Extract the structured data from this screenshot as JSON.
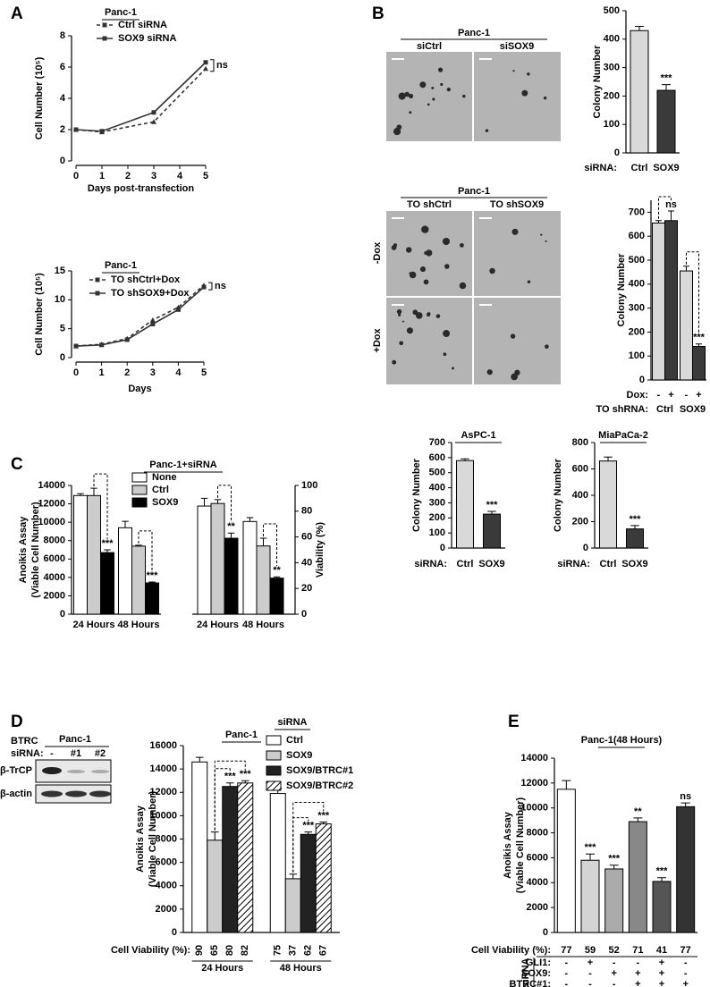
{
  "panel_labels": [
    "A",
    "B",
    "C",
    "D",
    "E"
  ],
  "micrographs": [
    {
      "title": "Panc-1",
      "columns": [
        "siCtrl",
        "siSOX9"
      ]
    },
    {
      "title": "Panc-1",
      "columns": [
        "TO shCtrl",
        "TO shSOX9"
      ],
      "rows": [
        "-Dox",
        "+Dox"
      ]
    }
  ],
  "blot": {
    "label": [
      "BTRC",
      "siRNA:"
    ],
    "title": "Panc-1",
    "lanes": [
      "-",
      "#1",
      "#2"
    ],
    "bands": [
      "β-TrCP",
      "β-actin"
    ]
  },
  "chart_data": [
    {
      "type": "line",
      "title": "Panc-1",
      "x": [
        0,
        1,
        3,
        5
      ],
      "series": [
        {
          "name": "Ctrl siRNA",
          "color": "#333333",
          "dashed": true,
          "marker": "triangle",
          "values": [
            2,
            1.85,
            2.5,
            5.9
          ]
        },
        {
          "name": "SOX9 siRNA",
          "color": "#333333",
          "dashed": false,
          "marker": "square",
          "values": [
            2,
            1.9,
            3.1,
            6.3
          ]
        }
      ],
      "xlim": [
        0,
        5
      ],
      "xticks": [
        0,
        1,
        2,
        3,
        4,
        5
      ],
      "ylim": [
        0,
        8
      ],
      "yticks": [
        0,
        2,
        4,
        6,
        8
      ],
      "xlabel": "Days post-transfection",
      "ylabel": [
        "Cell Number (10⁵)"
      ],
      "annotation": "ns"
    },
    {
      "type": "line",
      "title": "Panc-1",
      "x": [
        0,
        1,
        2,
        3,
        4,
        5
      ],
      "series": [
        {
          "name": "TO shCtrl+Dox",
          "color": "#333333",
          "dashed": true,
          "marker": "triangle",
          "values": [
            2,
            2.3,
            3.3,
            6.5,
            8.7,
            12.5
          ]
        },
        {
          "name": "TO shSOX9+Dox",
          "color": "#333333",
          "dashed": false,
          "marker": "square",
          "values": [
            2,
            2.2,
            3.1,
            5.8,
            8.3,
            12.2
          ]
        }
      ],
      "xlim": [
        0,
        5
      ],
      "xticks": [
        0,
        1,
        2,
        3,
        4,
        5
      ],
      "ylim": [
        0,
        15
      ],
      "yticks": [
        0,
        5,
        10,
        15
      ],
      "xlabel": "Days",
      "ylabel": [
        "Cell Number (10⁵)"
      ],
      "annotation": "ns"
    },
    {
      "type": "bar",
      "categories": [
        "Ctrl",
        "SOX9"
      ],
      "values": [
        430,
        220
      ],
      "errors": [
        15,
        20
      ],
      "colors": [
        "#d9d9d9",
        "#3a3a3a"
      ],
      "annotations": [
        null,
        "***"
      ],
      "ylim": [
        0,
        500
      ],
      "yticks": [
        0,
        100,
        200,
        300,
        400,
        500
      ],
      "ylabel": [
        "Colony Number"
      ],
      "category_label": "siRNA:"
    },
    {
      "type": "grouped_bar",
      "categories": [
        "Ctrl",
        "SOX9"
      ],
      "series": [
        {
          "name": "-",
          "color": "#d9d9d9",
          "values": [
            655,
            455
          ],
          "errors": [
            10,
            20
          ]
        },
        {
          "name": "+",
          "color": "#3a3a3a",
          "values": [
            665,
            140
          ],
          "errors": [
            40,
            10
          ],
          "annotations": [
            "ns",
            "***"
          ]
        }
      ],
      "ylim": [
        0,
        750
      ],
      "yticks": [
        0,
        100,
        200,
        300,
        400,
        500,
        600,
        700
      ],
      "ylabel": [
        "Colony Number"
      ],
      "series_label": "Dox:",
      "category_label": "TO shRNA:",
      "legend": false
    },
    {
      "type": "bar",
      "title": "AsPC-1",
      "categories": [
        "Ctrl",
        "SOX9"
      ],
      "values": [
        580,
        225
      ],
      "errors": [
        12,
        18
      ],
      "colors": [
        "#d9d9d9",
        "#3a3a3a"
      ],
      "annotations": [
        null,
        "***"
      ],
      "ylim": [
        0,
        700
      ],
      "yticks": [
        0,
        100,
        200,
        300,
        400,
        500,
        600,
        700
      ],
      "ylabel": [
        "Colony Number"
      ],
      "category_label": "siRNA:"
    },
    {
      "type": "bar",
      "title": "MiaPaCa-2",
      "categories": [
        "Ctrl",
        "SOX9"
      ],
      "values": [
        660,
        145
      ],
      "errors": [
        30,
        25
      ],
      "colors": [
        "#d9d9d9",
        "#3a3a3a"
      ],
      "annotations": [
        null,
        "***"
      ],
      "ylim": [
        0,
        800
      ],
      "yticks": [
        0,
        200,
        400,
        600,
        800
      ],
      "ylabel": [
        "Colony Number"
      ],
      "category_label": "siRNA:"
    },
    {
      "type": "grouped_bar",
      "title": "Panc-1+siRNA",
      "categories": [
        "24 Hours",
        "48 Hours"
      ],
      "series": [
        {
          "name": "None",
          "color": "#ffffff",
          "values": [
            12900,
            9400
          ],
          "errors": [
            200,
            700
          ]
        },
        {
          "name": "Ctrl",
          "color": "#cccccc",
          "values": [
            12900,
            7400
          ],
          "errors": [
            800,
            100
          ]
        },
        {
          "name": "SOX9",
          "color": "#000000",
          "values": [
            6700,
            3400
          ],
          "errors": [
            300,
            100
          ],
          "annotations": [
            "***",
            "***"
          ]
        }
      ],
      "ylim": [
        0,
        14000
      ],
      "yticks": [
        0,
        2000,
        4000,
        6000,
        8000,
        10000,
        12000,
        14000
      ],
      "ylabel": [
        "Anoikis Assay",
        "(Viable Cell Number)"
      ],
      "legend": true
    },
    {
      "type": "grouped_bar",
      "categories": [
        "24 Hours",
        "48 Hours"
      ],
      "y_side": "right",
      "series": [
        {
          "color": "#ffffff",
          "values": [
            84,
            72
          ],
          "errors": [
            6,
            3
          ]
        },
        {
          "color": "#cccccc",
          "values": [
            86,
            53
          ],
          "errors": [
            3,
            6
          ]
        },
        {
          "color": "#000000",
          "values": [
            59,
            28
          ],
          "errors": [
            4,
            1
          ],
          "annotations": [
            "**",
            "**"
          ]
        }
      ],
      "ylim": [
        0,
        100
      ],
      "yticks": [
        0,
        20,
        40,
        60,
        80,
        100
      ],
      "ylabel": [
        "Viability (%)"
      ],
      "legend": false
    },
    {
      "type": "grouped_bar",
      "title": "Panc-1",
      "legend_title": "siRNA",
      "categories": [
        "24 Hours",
        "48 Hours"
      ],
      "series": [
        {
          "name": "Ctrl",
          "color": "#ffffff",
          "values": [
            14600,
            11900
          ],
          "errors": [
            400,
            450
          ]
        },
        {
          "name": "SOX9",
          "color": "#cccccc",
          "values": [
            7900,
            4600
          ],
          "errors": [
            700,
            400
          ]
        },
        {
          "name": "SOX9/BTRC#1",
          "color": "#222222",
          "values": [
            12500,
            8400
          ],
          "errors": [
            300,
            200
          ],
          "annotations": [
            "***",
            "***"
          ]
        },
        {
          "name": "SOX9/BTRC#2",
          "color": "#ffffff",
          "pattern": "hatch",
          "values": [
            12800,
            9300
          ],
          "errors": [
            200,
            150
          ],
          "annotations": [
            "***",
            "***"
          ]
        }
      ],
      "ylim": [
        0,
        16000
      ],
      "yticks": [
        0,
        2000,
        4000,
        6000,
        8000,
        10000,
        12000,
        14000,
        16000
      ],
      "ylabel": [
        "Anoikis Assay",
        "(Viable Cell Number)"
      ],
      "legend": true,
      "viability_label": "Cell Viability (%):",
      "viability": [
        [
          90,
          65,
          80,
          82
        ],
        [
          75,
          37,
          62,
          67
        ]
      ]
    },
    {
      "type": "bar",
      "title": "Panc-1(48 Hours)",
      "values": [
        11500,
        5800,
        5100,
        8900,
        4100,
        10100
      ],
      "errors": [
        700,
        500,
        300,
        300,
        300,
        300
      ],
      "colors": [
        "#ffffff",
        "#d4d4d4",
        "#ababab",
        "#888888",
        "#555555",
        "#333333"
      ],
      "annotations": [
        null,
        "***",
        "***",
        "**",
        "***",
        "ns"
      ],
      "ylim": [
        0,
        14000
      ],
      "yticks": [
        0,
        2000,
        4000,
        6000,
        8000,
        10000,
        12000,
        14000
      ],
      "ylabel": [
        "Anoikis Assay",
        "(Viable Cell Number)"
      ],
      "viability_label": "Cell Viability (%):",
      "viability": [
        77,
        59,
        52,
        71,
        41,
        77
      ],
      "conditions_label": "siRNA",
      "conditions": [
        {
          "name": "GLI1:",
          "values": [
            "-",
            "+",
            "-",
            "-",
            "+",
            "-"
          ]
        },
        {
          "name": "SOX9:",
          "values": [
            "-",
            "-",
            "+",
            "+",
            "+",
            "-"
          ]
        },
        {
          "name": "BTRC#1:",
          "values": [
            "-",
            "-",
            "-",
            "+",
            "+",
            "+"
          ]
        }
      ]
    }
  ]
}
